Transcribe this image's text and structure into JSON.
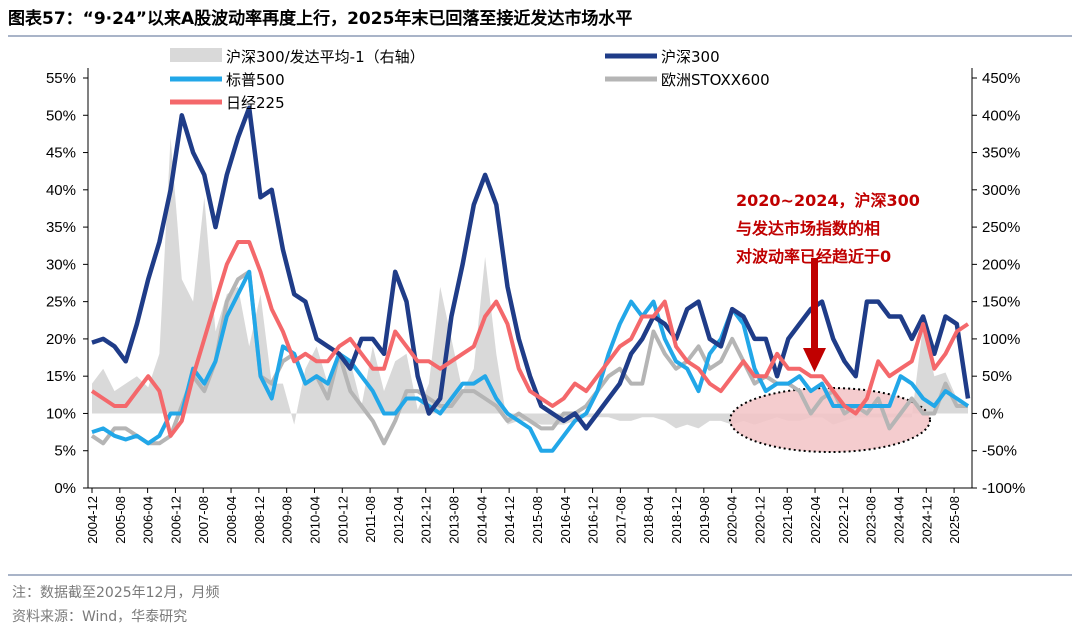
{
  "title": "图表57：“9·24”以来A股波动率再度上行，2025年末已回落至接近发达市场水平",
  "footnote": "注：数据截至2025年12月，月频",
  "source": "资料来源：Wind，华泰研究",
  "chart_data": {
    "type": "line",
    "left_axis": {
      "ylim": [
        0,
        55
      ],
      "ticks": [
        "0%",
        "5%",
        "10%",
        "15%",
        "20%",
        "25%",
        "30%",
        "35%",
        "40%",
        "45%",
        "50%",
        "55%"
      ]
    },
    "right_axis": {
      "ylim": [
        -100,
        450
      ],
      "ticks": [
        "-100%",
        "-50%",
        "0%",
        "50%",
        "100%",
        "150%",
        "200%",
        "250%",
        "300%",
        "350%",
        "400%",
        "450%"
      ]
    },
    "x_ticks": [
      "2004-12",
      "2005-08",
      "2006-04",
      "2006-12",
      "2007-08",
      "2008-04",
      "2008-12",
      "2009-08",
      "2010-04",
      "2010-12",
      "2011-08",
      "2012-04",
      "2012-12",
      "2013-08",
      "2014-04",
      "2014-12",
      "2015-08",
      "2016-04",
      "2016-12",
      "2017-08",
      "2018-04",
      "2018-12",
      "2019-08",
      "2020-04",
      "2020-12",
      "2021-08",
      "2022-04",
      "2022-12",
      "2023-08",
      "2024-04",
      "2024-12",
      "2025-08"
    ],
    "x_start": "2004-12",
    "x_step_months": 4,
    "series": [
      {
        "name": "沪深300/发达平均-1（右轴）",
        "type": "area",
        "axis": "right",
        "color": "#d9d9d9",
        "values": [
          40,
          60,
          30,
          40,
          50,
          35,
          80,
          370,
          180,
          150,
          290,
          110,
          160,
          170,
          90,
          160,
          40,
          40,
          -15,
          60,
          90,
          40,
          80,
          70,
          10,
          90,
          30,
          70,
          80,
          5,
          40,
          170,
          100,
          30,
          60,
          210,
          80,
          -15,
          -10,
          -10,
          -15,
          -15,
          -15,
          -10,
          -5,
          -5,
          -5,
          -10,
          -10,
          -5,
          -5,
          -10,
          -20,
          -15,
          -20,
          -10,
          -10,
          -15,
          -10,
          -15,
          -10,
          -5,
          -10,
          -10,
          -5,
          -5,
          -15,
          -10,
          -5,
          -5,
          -5,
          -5,
          -5,
          -5,
          120,
          50,
          55,
          20,
          10
        ]
      },
      {
        "name": "沪深300",
        "type": "line",
        "axis": "left",
        "color": "#1f3c88",
        "values": [
          19.5,
          20,
          19,
          17,
          22,
          28,
          33,
          40,
          50,
          45,
          42,
          35,
          42,
          47,
          51,
          39,
          40,
          32,
          26,
          25,
          20,
          19,
          18,
          16,
          20,
          20,
          18,
          29,
          25,
          15,
          10,
          12,
          23,
          30,
          38,
          42,
          38,
          27,
          20,
          15,
          11,
          10,
          9,
          10,
          8,
          10,
          12,
          14,
          18,
          20,
          23,
          22,
          20,
          24,
          25,
          20,
          19,
          24,
          23,
          20,
          20,
          15,
          20,
          22,
          24,
          25,
          20,
          17,
          15,
          25,
          25,
          23,
          23,
          20,
          23,
          18,
          23,
          22,
          12
        ]
      },
      {
        "name": "标普500",
        "type": "line",
        "axis": "left",
        "color": "#22a7e8",
        "values": [
          7.5,
          8,
          7,
          6.5,
          7,
          6,
          7,
          10,
          10,
          16,
          14,
          17,
          23,
          26,
          29,
          15,
          12,
          19,
          18,
          14,
          15,
          14,
          18,
          17,
          15,
          13,
          10,
          10,
          12,
          12,
          11,
          10,
          12,
          14,
          14,
          15,
          12,
          10,
          9,
          8,
          5,
          5,
          7,
          9,
          10,
          13,
          18,
          22,
          25,
          23,
          25,
          20,
          17,
          16,
          13,
          18,
          20,
          24,
          22,
          16,
          13,
          14,
          14,
          15,
          13,
          14,
          11,
          11,
          11,
          11,
          11,
          11,
          15,
          14,
          12,
          11,
          13,
          12,
          11
        ]
      },
      {
        "name": "欧洲STOXX600",
        "type": "line",
        "axis": "left",
        "color": "#b5b5b5",
        "values": [
          7,
          6,
          8,
          8,
          7,
          6,
          6,
          7,
          11,
          15,
          13,
          17,
          25,
          28,
          29,
          15,
          14,
          17,
          18,
          14,
          15,
          12,
          18,
          13,
          11,
          9,
          6,
          9,
          13,
          13,
          12,
          11,
          11,
          13,
          13,
          12,
          11,
          9,
          10,
          9,
          8,
          8,
          10,
          10,
          11,
          13,
          15,
          16,
          14,
          14,
          21,
          18,
          16,
          17,
          19,
          16,
          17,
          20,
          17,
          14,
          15,
          14,
          14,
          13,
          10,
          12,
          13,
          10,
          11,
          10,
          12,
          8,
          10,
          12,
          10,
          10,
          14,
          11,
          11
        ]
      },
      {
        "name": "日经225",
        "type": "line",
        "axis": "left",
        "color": "#f4686b",
        "values": [
          13,
          12,
          11,
          11,
          13,
          15,
          13,
          7,
          9,
          15,
          20,
          25,
          30,
          33,
          33,
          29,
          24,
          21,
          17,
          18,
          17,
          17,
          19,
          20,
          18,
          16,
          16,
          21,
          19,
          17,
          17,
          16,
          17,
          18,
          19,
          23,
          25,
          22,
          16,
          13,
          12,
          11,
          12,
          14,
          13,
          15,
          17,
          19,
          20,
          23,
          23,
          25,
          19,
          17,
          16,
          14,
          13,
          15,
          17,
          15,
          15,
          18,
          16,
          16,
          15,
          15,
          13,
          11,
          10,
          12,
          17,
          15,
          16,
          17,
          22,
          16,
          18,
          21,
          22
        ]
      }
    ],
    "annotation": {
      "lines": [
        "2020~2024，沪深300",
        "与发达市场指数的相",
        "对波动率已经趋近于0"
      ]
    }
  }
}
